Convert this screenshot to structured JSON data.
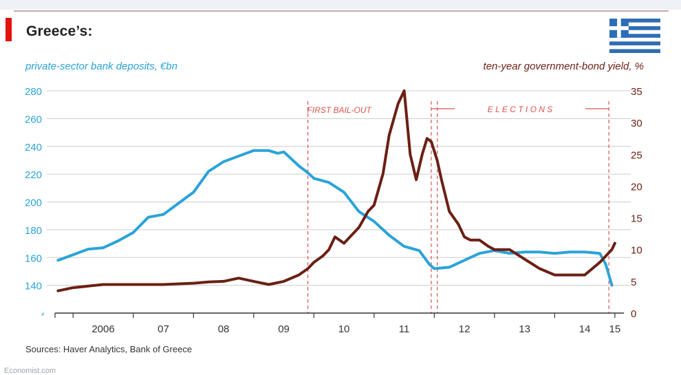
{
  "header": {
    "title": "Greece’s:",
    "sources": "Sources: Haver Analytics, Bank of Greece",
    "brand": "Economist.com"
  },
  "colors": {
    "deposits": "#2aa3d9",
    "yield": "#6b1f14",
    "annotation": "#d9534f",
    "grid": "#cccccc",
    "axis": "#333333",
    "flag_blue": "#2e6db4"
  },
  "chart_data": {
    "type": "line",
    "title": "Greece’s:",
    "left_axis": {
      "label": "private-sector bank deposits, €bn",
      "ticks": [
        140,
        160,
        180,
        200,
        220,
        240,
        260,
        280
      ],
      "range": [
        120,
        280
      ],
      "break_marker": true
    },
    "right_axis": {
      "label": "ten-year government-bond yield, %",
      "ticks": [
        0,
        5,
        10,
        15,
        20,
        25,
        30,
        35
      ],
      "range": [
        0,
        35
      ]
    },
    "x_axis": {
      "range": [
        2005.7,
        2015.15
      ],
      "tick_labels": [
        "2006",
        "07",
        "08",
        "09",
        "10",
        "11",
        "12",
        "13",
        "14",
        "15"
      ],
      "tick_positions": [
        2006,
        2007,
        2008,
        2009,
        2010,
        2011,
        2012,
        2013,
        2014,
        2015
      ]
    },
    "annotations": [
      {
        "type": "vline",
        "x": 2009.9,
        "label": "FIRST BAIL-OUT"
      },
      {
        "type": "vline",
        "x": 2011.95,
        "label": ""
      },
      {
        "type": "vline",
        "x": 2012.05,
        "label": ""
      },
      {
        "type": "vline",
        "x": 2014.9,
        "label": ""
      },
      {
        "type": "bracket",
        "x_start": 2011.95,
        "x_end": 2014.9,
        "label": "E L E C T I O N S"
      }
    ],
    "series": [
      {
        "name": "private-sector bank deposits",
        "axis": "left",
        "x": [
          2005.75,
          2006.0,
          2006.25,
          2006.5,
          2006.75,
          2007.0,
          2007.25,
          2007.5,
          2007.75,
          2008.0,
          2008.25,
          2008.5,
          2008.75,
          2009.0,
          2009.25,
          2009.4,
          2009.5,
          2009.75,
          2009.9,
          2010.0,
          2010.25,
          2010.5,
          2010.75,
          2011.0,
          2011.25,
          2011.5,
          2011.75,
          2011.92,
          2012.0,
          2012.25,
          2012.5,
          2012.75,
          2013.0,
          2013.25,
          2013.5,
          2013.75,
          2014.0,
          2014.25,
          2014.5,
          2014.75,
          2014.85,
          2014.95
        ],
        "values": [
          158,
          162,
          166,
          167,
          172,
          178,
          189,
          191,
          199,
          207,
          222,
          229,
          233,
          237,
          237,
          235,
          236,
          226,
          221,
          217,
          214,
          207,
          193,
          186,
          176,
          168,
          165,
          155,
          152,
          153,
          158,
          163,
          165,
          163,
          164,
          164,
          163,
          164,
          164,
          163,
          155,
          140
        ],
        "color": "#2aa3d9"
      },
      {
        "name": "ten-year government-bond yield",
        "axis": "right",
        "x": [
          2005.75,
          2006.0,
          2006.5,
          2007.0,
          2007.5,
          2008.0,
          2008.25,
          2008.5,
          2008.75,
          2009.0,
          2009.25,
          2009.5,
          2009.75,
          2009.9,
          2010.0,
          2010.15,
          2010.25,
          2010.35,
          2010.5,
          2010.6,
          2010.75,
          2010.9,
          2011.0,
          2011.15,
          2011.25,
          2011.4,
          2011.5,
          2011.6,
          2011.7,
          2011.8,
          2011.88,
          2011.95,
          2012.05,
          2012.12,
          2012.25,
          2012.4,
          2012.5,
          2012.6,
          2012.75,
          2012.9,
          2013.0,
          2013.25,
          2013.5,
          2013.75,
          2014.0,
          2014.25,
          2014.5,
          2014.75,
          2014.95,
          2015.0
        ],
        "values": [
          3.5,
          4,
          4.5,
          4.5,
          4.5,
          4.7,
          4.9,
          5,
          5.5,
          5,
          4.5,
          5,
          6,
          7,
          8,
          9,
          10,
          12,
          11,
          12,
          13.5,
          16,
          17,
          22,
          28,
          33,
          35,
          25,
          21,
          25,
          27.5,
          27,
          24,
          21,
          16,
          14,
          12,
          11.5,
          11.5,
          10.5,
          10,
          10,
          8.5,
          7,
          6,
          6,
          6,
          8,
          10,
          11
        ],
        "color": "#6b1f14"
      }
    ]
  }
}
